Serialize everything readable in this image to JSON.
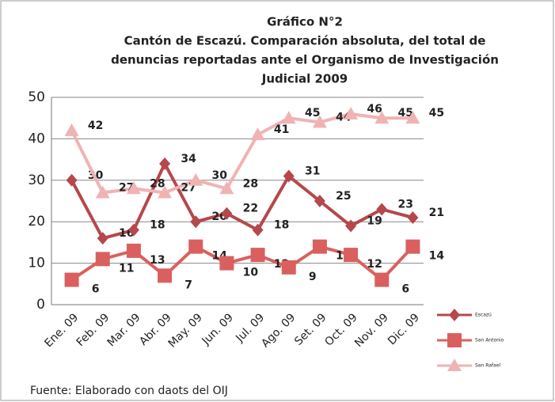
{
  "chart_data": {
    "type": "line",
    "title": [
      "Gráfico N°2",
      "Cantón de Escazú. Comparación absoluta, del total de",
      "denuncias reportadas ante el Organismo de Investigación",
      "Judicial  2009"
    ],
    "source": "Fuente: Elaborado con daots del OIJ",
    "categories": [
      "Ene. 09",
      "Feb. 09",
      "Mar. 09",
      "Abr. 09",
      "May. 09",
      "Jun. 09",
      "Jul. 09",
      "Ago. 09",
      "Set. 09",
      "Oct. 09",
      "Nov. 09",
      "Dic. 09"
    ],
    "series": [
      {
        "name": "Escazú",
        "color": "#b5484c",
        "marker": "diamond",
        "values": [
          30,
          16,
          18,
          34,
          20,
          22,
          18,
          31,
          25,
          19,
          23,
          21
        ]
      },
      {
        "name": "San Antonio",
        "color": "#d9605f",
        "marker": "square",
        "values": [
          6,
          11,
          13,
          7,
          14,
          10,
          12,
          9,
          14,
          12,
          6,
          14
        ]
      },
      {
        "name": "San Rafael",
        "color": "#f0b3b3",
        "marker": "triangle",
        "values": [
          42,
          27,
          28,
          27,
          30,
          28,
          41,
          45,
          44,
          46,
          45,
          45
        ]
      }
    ],
    "ylim": [
      0,
      50
    ],
    "yticks": [
      0,
      10,
      20,
      30,
      40,
      50
    ],
    "grid": true,
    "legend": "right"
  }
}
